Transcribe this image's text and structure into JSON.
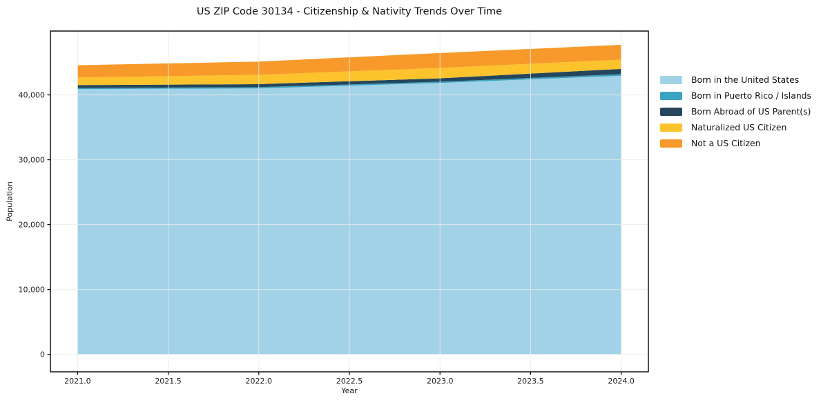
{
  "figure": {
    "background": "#ffffff",
    "spine_color": "#000000",
    "grid_color": "#eaeaea",
    "text_color": "#1a1a1a"
  },
  "chart_data": {
    "type": "area",
    "stacked": true,
    "title": "US ZIP Code 30134 - Citizenship & Nativity Trends Over Time",
    "xlabel": "Year",
    "ylabel": "Population",
    "x": [
      2021,
      2022,
      2023,
      2024
    ],
    "series": [
      {
        "name": "Born in the United States",
        "color": "#a2d2e7",
        "values": [
          40900,
          41000,
          41850,
          42950
        ]
      },
      {
        "name": "Born in Puerto Rico / Islands",
        "color": "#3aa3c1",
        "values": [
          160,
          200,
          180,
          250
        ]
      },
      {
        "name": "Born Abroad of US Parent(s)",
        "color": "#25465c",
        "values": [
          460,
          460,
          530,
          810
        ]
      },
      {
        "name": "Naturalized US Citizen",
        "color": "#fcc32d",
        "values": [
          1170,
          1430,
          1600,
          1430
        ]
      },
      {
        "name": "Not a US Citizen",
        "color": "#f89a2b",
        "values": [
          1890,
          2050,
          2300,
          2290
        ]
      }
    ],
    "xticks": {
      "values": [
        2021.0,
        2021.5,
        2022.0,
        2022.5,
        2023.0,
        2023.5,
        2024.0
      ],
      "labels": [
        "2021.0",
        "2021.5",
        "2022.0",
        "2022.5",
        "2023.0",
        "2023.5",
        "2024.0"
      ]
    },
    "yticks": {
      "values": [
        0,
        10000,
        20000,
        30000,
        40000
      ],
      "labels": [
        "0",
        "10,000",
        "20,000",
        "30,000",
        "40,000"
      ]
    },
    "xlim": [
      2020.85,
      2024.15
    ],
    "ylim": [
      -2700,
      49850
    ],
    "grid": true,
    "legend_position": "right"
  }
}
